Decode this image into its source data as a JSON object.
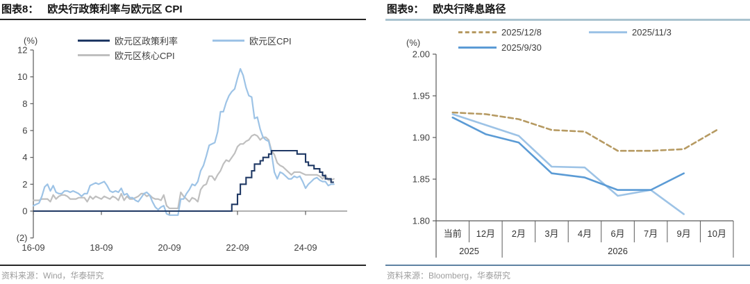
{
  "panels": [
    {
      "tag": "图表8：",
      "title": "欧央行政策利率与欧元区 CPI",
      "unit": "(%)",
      "source": "资料来源：Wind，华泰研究",
      "title_rule_color": "#262626",
      "footer_rule_color": "#262626",
      "chart_data": {
        "type": "line",
        "x_start": "2016-09",
        "x_step": "month",
        "xtick_labels": [
          "16-09",
          "18-09",
          "20-09",
          "22-09",
          "24-09"
        ],
        "ylim": [
          -2,
          12
        ],
        "yticks": [
          12,
          10,
          8,
          6,
          4,
          2,
          0,
          -2
        ],
        "ytick_labels": [
          "12",
          "10",
          "8",
          "6",
          "4",
          "2",
          "0",
          "(2)"
        ],
        "grid": false,
        "legend_position": "top",
        "series": [
          {
            "name": "欧元区政策利率",
            "color": "#1F3864",
            "style": "step",
            "values": [
              0,
              0,
              0,
              0,
              0,
              0,
              0,
              0,
              0,
              0,
              0,
              0,
              0,
              0,
              0,
              0,
              0,
              0,
              0,
              0,
              0,
              0,
              0,
              0,
              0,
              0,
              0,
              0,
              0,
              0,
              0,
              0,
              0,
              0,
              0,
              0,
              0,
              0,
              0,
              0,
              0,
              0,
              0,
              0,
              0,
              0,
              0,
              0,
              0,
              0,
              0,
              0,
              0,
              0,
              0,
              0,
              0,
              0,
              0,
              0,
              0,
              0,
              0,
              0,
              0,
              0,
              0,
              0,
              0,
              0,
              0.5,
              0.5,
              1.25,
              2,
              2,
              2.5,
              2.5,
              3,
              3.5,
              3.5,
              3.75,
              4,
              4,
              4.25,
              4.5,
              4.5,
              4.5,
              4.5,
              4.5,
              4.5,
              4.5,
              4.5,
              4.5,
              4.25,
              4.25,
              4.25,
              3.65,
              3.4,
              3.4,
              3.15,
              3.15,
              2.9,
              2.65,
              2.4,
              2.4,
              2.15,
              2.15
            ]
          },
          {
            "name": "欧元区核心CPI",
            "color": "#BFBFBF",
            "style": "line",
            "values": [
              0.8,
              0.8,
              0.8,
              0.9,
              0.9,
              0.9,
              0.7,
              1.2,
              0.9,
              1.1,
              1.2,
              1.2,
              1.1,
              0.9,
              0.9,
              0.9,
              1.0,
              1.0,
              1.0,
              0.7,
              1.1,
              0.9,
              1.1,
              1.0,
              0.9,
              1.1,
              1.0,
              0.9,
              1.1,
              1.0,
              0.8,
              1.3,
              0.8,
              1.1,
              0.9,
              0.9,
              1.0,
              1.1,
              1.3,
              1.3,
              1.1,
              1.2,
              1.0,
              0.9,
              0.9,
              0.8,
              1.2,
              0.4,
              0.2,
              0.2,
              0.2,
              0.2,
              1.4,
              1.1,
              0.9,
              0.7,
              1.0,
              0.9,
              0.7,
              1.6,
              1.9,
              2.0,
              2.6,
              2.6,
              2.3,
              2.7,
              3.0,
              3.5,
              3.8,
              3.7,
              4.0,
              4.3,
              4.8,
              5.0,
              5.0,
              5.2,
              5.3,
              5.6,
              5.7,
              5.6,
              5.3,
              5.5,
              5.5,
              5.3,
              4.5,
              4.2,
              3.6,
              3.4,
              3.3,
              3.1,
              2.9,
              2.7,
              2.9,
              2.9,
              2.9,
              2.8,
              2.7,
              2.7,
              2.7,
              2.7,
              2.7,
              2.6,
              2.4,
              2.7,
              2.3,
              2.3,
              2.4
            ]
          },
          {
            "name": "欧元区CPI",
            "color": "#9DC3E6",
            "style": "line",
            "values": [
              0.4,
              0.5,
              0.6,
              1.1,
              1.8,
              2.0,
              1.5,
              1.9,
              1.4,
              1.3,
              1.3,
              1.5,
              1.5,
              1.4,
              1.5,
              1.4,
              1.3,
              1.1,
              1.3,
              1.3,
              1.9,
              2.0,
              2.1,
              2.0,
              2.1,
              2.2,
              1.9,
              1.5,
              1.4,
              1.5,
              1.4,
              1.7,
              1.2,
              1.3,
              1.0,
              1.0,
              0.8,
              0.7,
              1.0,
              1.3,
              1.4,
              1.2,
              0.7,
              0.3,
              0.1,
              0.3,
              0.4,
              -0.2,
              -0.3,
              -0.3,
              -0.3,
              -0.3,
              0.9,
              0.9,
              1.3,
              1.6,
              2.0,
              1.9,
              2.2,
              3.0,
              3.4,
              4.1,
              4.9,
              5.0,
              5.1,
              5.9,
              7.4,
              7.4,
              8.1,
              8.6,
              8.9,
              9.1,
              9.9,
              10.6,
              10.1,
              9.2,
              8.6,
              8.5,
              6.9,
              7.0,
              6.1,
              5.5,
              5.3,
              5.2,
              4.3,
              2.9,
              2.4,
              2.9,
              2.8,
              2.6,
              2.4,
              2.4,
              2.6,
              2.5,
              2.6,
              2.2,
              1.7,
              2.0,
              2.2,
              2.4,
              2.5,
              2.3,
              2.2,
              2.2,
              1.9,
              2.0,
              2.0
            ]
          }
        ]
      }
    },
    {
      "tag": "图表9：",
      "title": "欧央行降息路径",
      "unit": "(%)",
      "source": "资料来源：Bloomberg，华泰研究",
      "title_rule_color": "#A9C3CF",
      "footer_rule_color": "#5E82A2",
      "chart_data": {
        "type": "line",
        "categories": [
          "当前",
          "12月",
          "2月",
          "3月",
          "4月",
          "6月",
          "7月",
          "9月",
          "10月"
        ],
        "category_groups": [
          {
            "label": "2025",
            "span": 2
          },
          {
            "label": "2026",
            "span": 7
          }
        ],
        "ylim": [
          1.8,
          2.0
        ],
        "yticks": [
          2.0,
          1.95,
          1.9,
          1.85,
          1.8
        ],
        "ytick_labels": [
          "2.00",
          "1.95",
          "1.90",
          "1.85",
          "1.80"
        ],
        "grid": false,
        "legend_position": "top",
        "series": [
          {
            "name": "2025/12/8",
            "color": "#B69A62",
            "dash": true,
            "values": [
              1.93,
              1.928,
              1.922,
              1.909,
              1.907,
              1.884,
              1.884,
              1.886,
              1.909
            ]
          },
          {
            "name": "2025/11/3",
            "color": "#9DC3E6",
            "dash": false,
            "values": [
              1.928,
              1.915,
              1.902,
              1.865,
              1.864,
              1.83,
              1.837,
              1.808,
              null
            ]
          },
          {
            "name": "2025/9/30",
            "color": "#5B9BD5",
            "dash": false,
            "values": [
              1.924,
              1.904,
              1.894,
              1.857,
              1.852,
              1.837,
              1.837,
              1.857,
              null
            ]
          }
        ]
      }
    }
  ]
}
